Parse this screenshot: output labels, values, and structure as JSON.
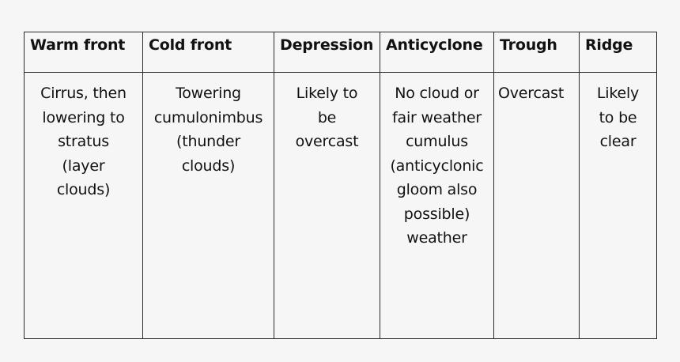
{
  "table": {
    "headers": [
      "Warm front",
      "Cold front",
      "Depression",
      "Anticyclone",
      "Trough",
      "Ridge"
    ],
    "cells": [
      "Cirrus, then\nlowering to\nstratus\n(layer\nclouds)",
      "Towering\ncumulonimbus\n(thunder\nclouds)",
      "Likely to\nbe\novercast",
      "No cloud or\nfair weather\ncumulus\n(anticyclonic\ngloom also\npossible)\nweather",
      "Overcast",
      "Likely\nto be\nclear"
    ]
  }
}
